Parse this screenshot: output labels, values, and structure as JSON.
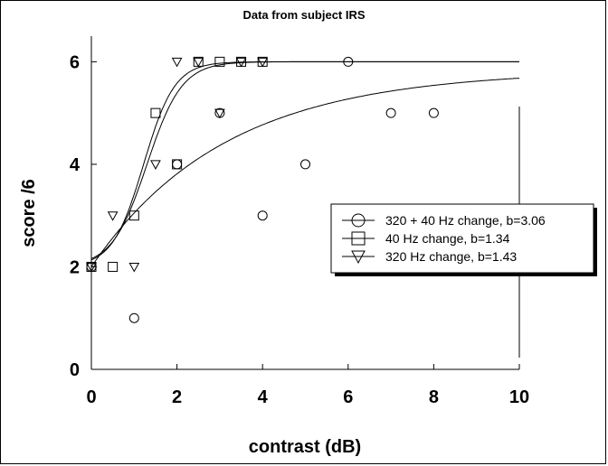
{
  "chart_data": {
    "type": "scatter",
    "title": "Data from subject IRS",
    "xlabel": "contrast (dB)",
    "ylabel": "score /6",
    "xlim": [
      0,
      10
    ],
    "ylim": [
      0,
      6.5
    ],
    "xticks": [
      0,
      2,
      4,
      6,
      8,
      10
    ],
    "yticks": [
      0,
      2,
      4,
      6
    ],
    "grid": false,
    "legend_position": "right",
    "series": [
      {
        "name": "320 + 40 Hz change, b=3.06",
        "marker": "circle",
        "points": [
          [
            0,
            2
          ],
          [
            1,
            1
          ],
          [
            2,
            4
          ],
          [
            3,
            5
          ],
          [
            4,
            3
          ],
          [
            5,
            4
          ],
          [
            6,
            6
          ],
          [
            7,
            5
          ],
          [
            8,
            5
          ]
        ],
        "fit": {
          "lower": 2,
          "upper": 6,
          "midpoint": 0,
          "slope": 0.32
        }
      },
      {
        "name": "40 Hz change, b=1.34",
        "marker": "square",
        "points": [
          [
            0,
            2
          ],
          [
            0.5,
            2
          ],
          [
            1,
            3
          ],
          [
            1.5,
            5
          ],
          [
            2,
            4
          ],
          [
            2.5,
            6
          ],
          [
            3,
            6
          ],
          [
            3.5,
            6
          ],
          [
            4,
            6
          ]
        ],
        "fit": {
          "lower": 2,
          "upper": 6,
          "midpoint": 1.22,
          "slope": 2.75
        }
      },
      {
        "name": "320 Hz change, b=1.43",
        "marker": "triangle",
        "points": [
          [
            0,
            2
          ],
          [
            0.5,
            3
          ],
          [
            1,
            2
          ],
          [
            1.5,
            4
          ],
          [
            2,
            6
          ],
          [
            2.5,
            6
          ],
          [
            3,
            5
          ],
          [
            3.5,
            6
          ],
          [
            4,
            6
          ]
        ],
        "fit": {
          "lower": 2,
          "upper": 6,
          "midpoint": 1.3,
          "slope": 2.45
        }
      }
    ]
  }
}
